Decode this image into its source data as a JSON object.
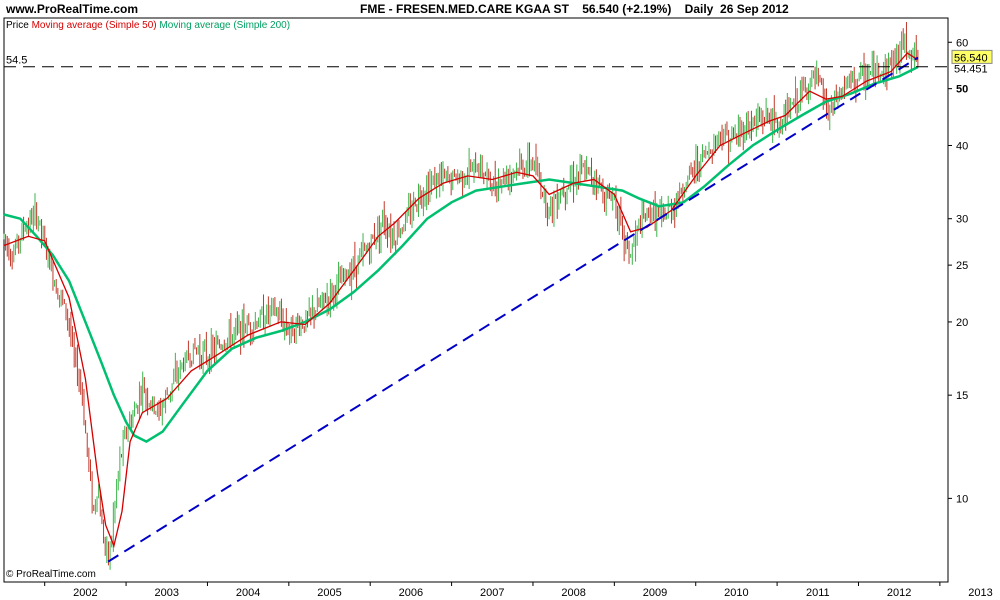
{
  "header": {
    "site": "www.ProRealTime.com",
    "title": "FME - FRESEN.MED.CARE KGAA ST",
    "price": "56.540 (+2.19%)",
    "period": "Daily",
    "date": "26 Sep 2012"
  },
  "legend": {
    "price": "Price",
    "ma50": "Moving average (Simple 50)",
    "ma200": "Moving average (Simple 200)"
  },
  "footer": {
    "copyright": "© ProRealTime.com"
  },
  "colors": {
    "up": "#3cb44b",
    "down": "#c0392b",
    "ma50": "#d40000",
    "ma200": "#00c070",
    "trend": "#0000c8",
    "hline": "#000000",
    "current_bg": "#ffff66",
    "ma200_label": "#00a060"
  },
  "chart_data": {
    "type": "line",
    "title": "FME - FRESEN.MED.CARE KGAA ST",
    "yscale": "log",
    "ylim": [
      7.2,
      66
    ],
    "xlim": [
      2001.5,
      2013.1
    ],
    "x_ticks": [
      "2002",
      "2003",
      "2004",
      "2005",
      "2006",
      "2007",
      "2008",
      "2009",
      "2010",
      "2011",
      "2012",
      "2013"
    ],
    "y_ticks": [
      10,
      15,
      20,
      25,
      30,
      40,
      50,
      60
    ],
    "price_points": [
      [
        2001.5,
        28.0
      ],
      [
        2001.6,
        26.0
      ],
      [
        2001.75,
        29.0
      ],
      [
        2001.9,
        30.5
      ],
      [
        2002.0,
        27.0
      ],
      [
        2002.1,
        24.0
      ],
      [
        2002.2,
        22.0
      ],
      [
        2002.3,
        20.0
      ],
      [
        2002.35,
        17.5
      ],
      [
        2002.45,
        15.5
      ],
      [
        2002.5,
        13.0
      ],
      [
        2002.55,
        11.0
      ],
      [
        2002.6,
        9.5
      ],
      [
        2002.65,
        10.5
      ],
      [
        2002.7,
        9.0
      ],
      [
        2002.75,
        8.2
      ],
      [
        2002.78,
        7.8
      ],
      [
        2002.82,
        8.5
      ],
      [
        2002.87,
        10.0
      ],
      [
        2002.92,
        11.5
      ],
      [
        2003.0,
        13.0
      ],
      [
        2003.1,
        14.0
      ],
      [
        2003.2,
        15.5
      ],
      [
        2003.3,
        14.5
      ],
      [
        2003.4,
        14.0
      ],
      [
        2003.5,
        15.0
      ],
      [
        2003.7,
        17.0
      ],
      [
        2003.85,
        18.0
      ],
      [
        2004.0,
        17.5
      ],
      [
        2004.2,
        18.5
      ],
      [
        2004.4,
        19.5
      ],
      [
        2004.6,
        20.0
      ],
      [
        2004.8,
        21.0
      ],
      [
        2005.0,
        19.5
      ],
      [
        2005.2,
        20.0
      ],
      [
        2005.4,
        21.5
      ],
      [
        2005.6,
        23.0
      ],
      [
        2005.8,
        25.0
      ],
      [
        2006.0,
        27.0
      ],
      [
        2006.15,
        30.0
      ],
      [
        2006.3,
        28.0
      ],
      [
        2006.45,
        30.0
      ],
      [
        2006.6,
        33.0
      ],
      [
        2006.8,
        35.0
      ],
      [
        2007.0,
        35.0
      ],
      [
        2007.2,
        36.0
      ],
      [
        2007.35,
        37.0
      ],
      [
        2007.5,
        34.0
      ],
      [
        2007.65,
        35.5
      ],
      [
        2007.8,
        36.5
      ],
      [
        2008.0,
        37.5
      ],
      [
        2008.1,
        34.0
      ],
      [
        2008.2,
        31.0
      ],
      [
        2008.3,
        33.0
      ],
      [
        2008.45,
        35.0
      ],
      [
        2008.6,
        36.0
      ],
      [
        2008.75,
        35.5
      ],
      [
        2008.9,
        32.5
      ],
      [
        2009.0,
        33.0
      ],
      [
        2009.1,
        28.0
      ],
      [
        2009.2,
        26.0
      ],
      [
        2009.3,
        29.0
      ],
      [
        2009.45,
        31.0
      ],
      [
        2009.6,
        30.0
      ],
      [
        2009.75,
        32.0
      ],
      [
        2009.9,
        35.0
      ],
      [
        2010.0,
        37.0
      ],
      [
        2010.15,
        39.0
      ],
      [
        2010.3,
        42.0
      ],
      [
        2010.45,
        41.0
      ],
      [
        2010.6,
        43.0
      ],
      [
        2010.75,
        44.0
      ],
      [
        2010.9,
        45.0
      ],
      [
        2011.0,
        43.0
      ],
      [
        2011.15,
        46.0
      ],
      [
        2011.3,
        49.0
      ],
      [
        2011.45,
        52.0
      ],
      [
        2011.55,
        50.0
      ],
      [
        2011.62,
        45.0
      ],
      [
        2011.7,
        47.0
      ],
      [
        2011.85,
        51.0
      ],
      [
        2012.0,
        52.0
      ],
      [
        2012.15,
        53.0
      ],
      [
        2012.3,
        54.0
      ],
      [
        2012.45,
        56.0
      ],
      [
        2012.55,
        60.0
      ],
      [
        2012.65,
        58.0
      ],
      [
        2012.73,
        56.5
      ]
    ],
    "ma50_points": [
      [
        2001.5,
        27.0
      ],
      [
        2001.8,
        28.0
      ],
      [
        2002.0,
        27.5
      ],
      [
        2002.3,
        22.0
      ],
      [
        2002.5,
        16.0
      ],
      [
        2002.65,
        11.0
      ],
      [
        2002.75,
        9.0
      ],
      [
        2002.85,
        8.3
      ],
      [
        2002.95,
        9.5
      ],
      [
        2003.05,
        12.5
      ],
      [
        2003.2,
        14.0
      ],
      [
        2003.5,
        14.8
      ],
      [
        2003.8,
        16.5
      ],
      [
        2004.1,
        17.5
      ],
      [
        2004.5,
        19.0
      ],
      [
        2004.9,
        20.0
      ],
      [
        2005.2,
        19.8
      ],
      [
        2005.5,
        21.5
      ],
      [
        2005.8,
        24.5
      ],
      [
        2006.1,
        28.0
      ],
      [
        2006.3,
        29.5
      ],
      [
        2006.6,
        32.5
      ],
      [
        2006.9,
        34.5
      ],
      [
        2007.2,
        35.5
      ],
      [
        2007.5,
        35.0
      ],
      [
        2007.8,
        36.0
      ],
      [
        2008.0,
        35.5
      ],
      [
        2008.2,
        33.0
      ],
      [
        2008.5,
        34.5
      ],
      [
        2008.75,
        35.0
      ],
      [
        2009.0,
        33.0
      ],
      [
        2009.2,
        28.5
      ],
      [
        2009.4,
        29.0
      ],
      [
        2009.7,
        31.0
      ],
      [
        2010.0,
        35.5
      ],
      [
        2010.3,
        40.0
      ],
      [
        2010.6,
        42.0
      ],
      [
        2010.9,
        44.0
      ],
      [
        2011.1,
        45.0
      ],
      [
        2011.4,
        49.5
      ],
      [
        2011.6,
        48.0
      ],
      [
        2011.8,
        48.5
      ],
      [
        2012.1,
        51.5
      ],
      [
        2012.4,
        53.5
      ],
      [
        2012.6,
        57.5
      ],
      [
        2012.73,
        56.0
      ]
    ],
    "ma200_points": [
      [
        2001.5,
        30.5
      ],
      [
        2001.7,
        30.0
      ],
      [
        2001.9,
        28.0
      ],
      [
        2002.1,
        26.0
      ],
      [
        2002.3,
        23.5
      ],
      [
        2002.5,
        20.0
      ],
      [
        2002.7,
        17.0
      ],
      [
        2002.85,
        15.0
      ],
      [
        2003.0,
        13.5
      ],
      [
        2003.1,
        12.8
      ],
      [
        2003.25,
        12.5
      ],
      [
        2003.45,
        13.0
      ],
      [
        2003.7,
        14.5
      ],
      [
        2004.0,
        16.5
      ],
      [
        2004.3,
        18.0
      ],
      [
        2004.6,
        18.8
      ],
      [
        2004.9,
        19.3
      ],
      [
        2005.2,
        20.0
      ],
      [
        2005.5,
        21.0
      ],
      [
        2005.8,
        22.5
      ],
      [
        2006.1,
        24.5
      ],
      [
        2006.4,
        27.0
      ],
      [
        2006.7,
        30.0
      ],
      [
        2007.0,
        32.0
      ],
      [
        2007.3,
        33.5
      ],
      [
        2007.6,
        34.0
      ],
      [
        2007.9,
        34.5
      ],
      [
        2008.2,
        35.0
      ],
      [
        2008.5,
        34.5
      ],
      [
        2008.8,
        34.0
      ],
      [
        2009.1,
        33.5
      ],
      [
        2009.3,
        32.5
      ],
      [
        2009.55,
        31.5
      ],
      [
        2009.85,
        32.0
      ],
      [
        2010.1,
        34.0
      ],
      [
        2010.4,
        37.0
      ],
      [
        2010.7,
        40.0
      ],
      [
        2011.0,
        42.5
      ],
      [
        2011.3,
        45.0
      ],
      [
        2011.6,
        47.5
      ],
      [
        2011.9,
        49.0
      ],
      [
        2012.2,
        51.0
      ],
      [
        2012.5,
        52.5
      ],
      [
        2012.73,
        54.45
      ]
    ],
    "trendline": [
      [
        2002.78,
        7.8
      ],
      [
        2012.73,
        56.5
      ]
    ],
    "hline": {
      "value": 54.5,
      "label": "54.5"
    },
    "current": {
      "price": 56.54,
      "label": "56.540",
      "ma200_label": "54.451"
    }
  }
}
